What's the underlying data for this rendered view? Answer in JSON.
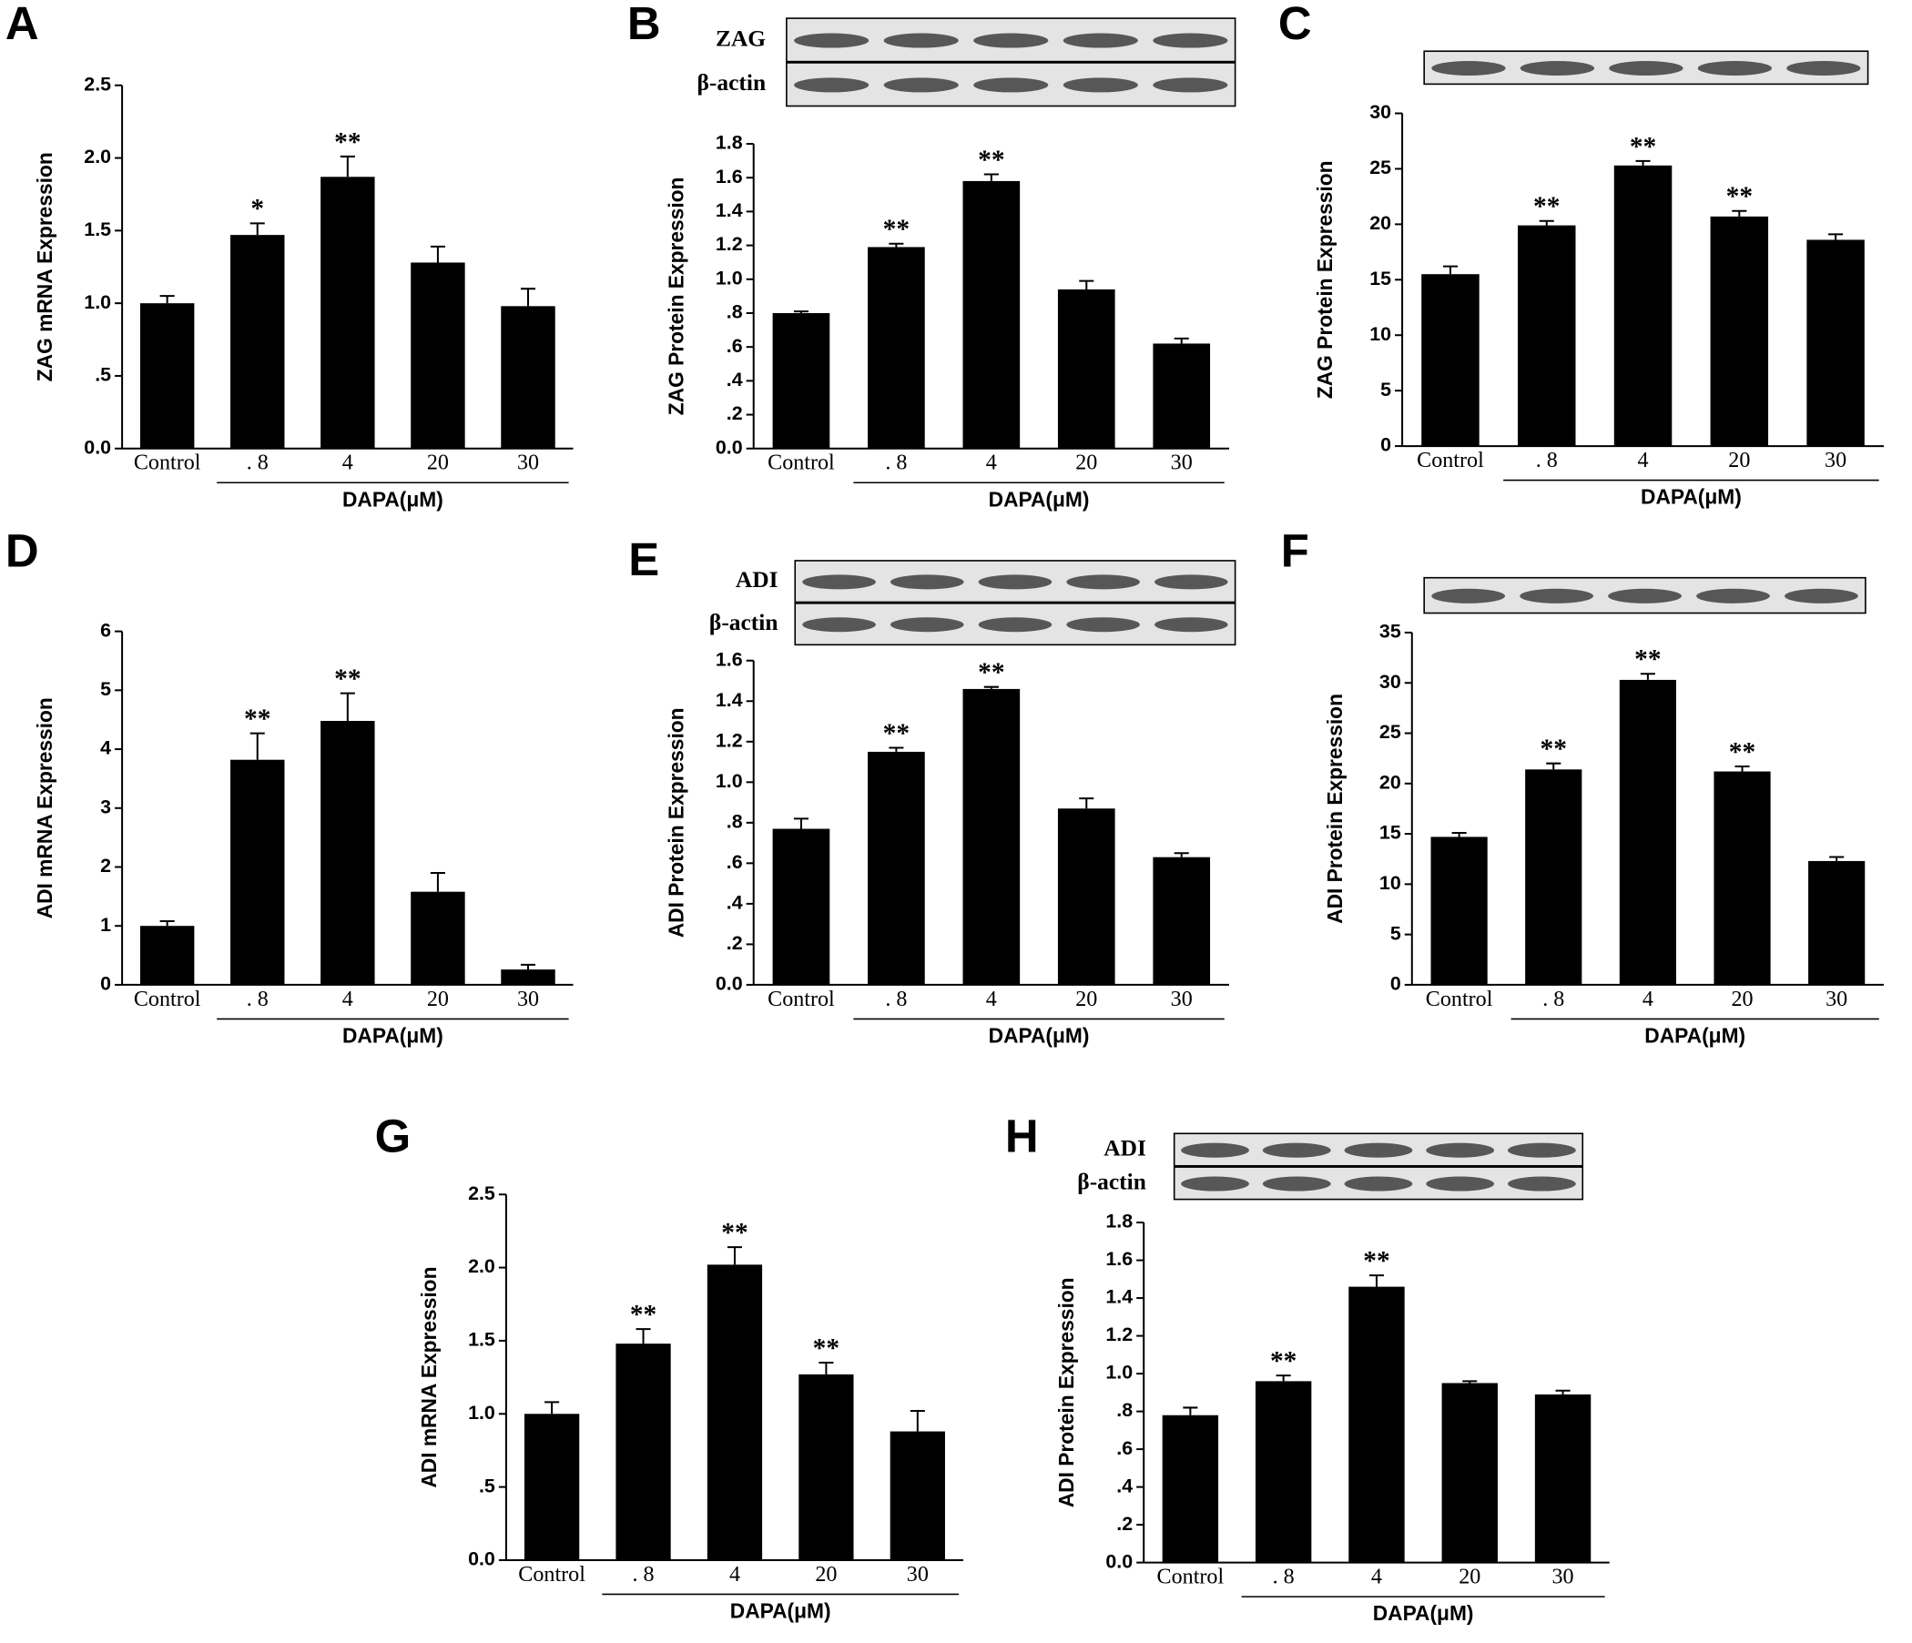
{
  "chart_data": [
    {
      "type": "bar",
      "panel": "A",
      "ylabel": "ZAG mRNA Expression",
      "xlabel": "DAPA(μM)",
      "categories": [
        "Control",
        ". 8",
        "4",
        "20",
        "30"
      ],
      "values": [
        1.0,
        1.47,
        1.87,
        1.28,
        0.98
      ],
      "errors": [
        0.05,
        0.08,
        0.14,
        0.11,
        0.12
      ],
      "annotations": [
        null,
        "*",
        "**",
        null,
        null
      ],
      "color": "#000000",
      "ylim": [
        0,
        2.5
      ],
      "yticks": [
        {
          "value": 0,
          "label": "0.0"
        },
        {
          "value": 0.5,
          "label": ".5"
        },
        {
          "value": 1,
          "label": "1.0"
        },
        1.5,
        {
          "value": 2,
          "label": "2.0"
        },
        2.5
      ]
    },
    {
      "type": "bar",
      "panel": "B",
      "ylabel": "ZAG Protein Expression",
      "xlabel": "DAPA(μM)",
      "blot_labels": [
        "ZAG",
        "β-actin"
      ],
      "categories": [
        "Control",
        ". 8",
        "4",
        "20",
        "30"
      ],
      "values": [
        0.8,
        1.19,
        1.58,
        0.94,
        0.62
      ],
      "errors": [
        0.01,
        0.02,
        0.04,
        0.05,
        0.03
      ],
      "annotations": [
        null,
        "**",
        "**",
        null,
        null
      ],
      "color": "#000000",
      "ylim": [
        0,
        1.8
      ],
      "yticks": [
        {
          "value": 0,
          "label": "0.0"
        },
        {
          "value": 0.2,
          "label": ".2"
        },
        {
          "value": 0.4,
          "label": ".4"
        },
        {
          "value": 0.6,
          "label": ".6"
        },
        {
          "value": 0.8,
          "label": ".8"
        },
        {
          "value": 1,
          "label": "1.0"
        },
        1.2,
        1.4,
        1.6,
        1.8
      ]
    },
    {
      "type": "bar",
      "panel": "C",
      "ylabel": "ZAG Protein Expression",
      "xlabel": "DAPA(μM)",
      "categories": [
        "Control",
        ". 8",
        "4",
        "20",
        "30"
      ],
      "values": [
        15.5,
        19.9,
        25.3,
        20.7,
        18.6
      ],
      "errors": [
        0.7,
        0.4,
        0.4,
        0.5,
        0.5
      ],
      "annotations": [
        null,
        "**",
        "**",
        "**",
        null
      ],
      "color": "#000000",
      "ylim": [
        0,
        30
      ],
      "yticks": [
        0,
        5,
        10,
        15,
        20,
        25,
        30
      ]
    },
    {
      "type": "bar",
      "panel": "D",
      "ylabel": "ADI mRNA Expression",
      "xlabel": "DAPA(μM)",
      "categories": [
        "Control",
        ". 8",
        "4",
        "20",
        "30"
      ],
      "values": [
        1.0,
        3.82,
        4.48,
        1.58,
        0.26
      ],
      "errors": [
        0.08,
        0.45,
        0.47,
        0.32,
        0.08
      ],
      "annotations": [
        null,
        "**",
        "**",
        null,
        null
      ],
      "color": "#000000",
      "ylim": [
        0,
        6
      ],
      "yticks": [
        0,
        1,
        2,
        3,
        4,
        5,
        6
      ]
    },
    {
      "type": "bar",
      "panel": "E",
      "ylabel": "ADI Protein Expression",
      "xlabel": "DAPA(μM)",
      "blot_labels": [
        "ADI",
        "β-actin"
      ],
      "categories": [
        "Control",
        ". 8",
        "4",
        "20",
        "30"
      ],
      "values": [
        0.77,
        1.15,
        1.46,
        0.87,
        0.63
      ],
      "errors": [
        0.05,
        0.02,
        0.01,
        0.05,
        0.02
      ],
      "annotations": [
        null,
        "**",
        "**",
        null,
        null
      ],
      "color": "#000000",
      "ylim": [
        0,
        1.6
      ],
      "yticks": [
        {
          "value": 0,
          "label": "0.0"
        },
        {
          "value": 0.2,
          "label": ".2"
        },
        {
          "value": 0.4,
          "label": ".4"
        },
        {
          "value": 0.6,
          "label": ".6"
        },
        {
          "value": 0.8,
          "label": ".8"
        },
        {
          "value": 1,
          "label": "1.0"
        },
        1.2,
        1.4,
        1.6
      ]
    },
    {
      "type": "bar",
      "panel": "F",
      "ylabel": "ADI Protein Expression",
      "xlabel": "DAPA(μM)",
      "categories": [
        "Control",
        ". 8",
        "4",
        "20",
        "30"
      ],
      "values": [
        14.7,
        21.4,
        30.3,
        21.2,
        12.3
      ],
      "errors": [
        0.4,
        0.6,
        0.6,
        0.5,
        0.4
      ],
      "annotations": [
        null,
        "**",
        "**",
        "**",
        null
      ],
      "color": "#000000",
      "ylim": [
        0,
        35
      ],
      "yticks": [
        0,
        5,
        10,
        15,
        20,
        25,
        30,
        35
      ]
    },
    {
      "type": "bar",
      "panel": "G",
      "ylabel": "ADI mRNA Expression",
      "xlabel": "DAPA(μM)",
      "categories": [
        "Control",
        ". 8",
        "4",
        "20",
        "30"
      ],
      "values": [
        1.0,
        1.48,
        2.02,
        1.27,
        0.88
      ],
      "errors": [
        0.08,
        0.1,
        0.12,
        0.08,
        0.14
      ],
      "annotations": [
        null,
        "**",
        "**",
        "**",
        null
      ],
      "color": "#000000",
      "ylim": [
        0,
        2.5
      ],
      "yticks": [
        {
          "value": 0,
          "label": "0.0"
        },
        {
          "value": 0.5,
          "label": ".5"
        },
        {
          "value": 1,
          "label": "1.0"
        },
        1.5,
        {
          "value": 2,
          "label": "2.0"
        },
        2.5
      ]
    },
    {
      "type": "bar",
      "panel": "H",
      "ylabel": "ADI Protein Expression",
      "xlabel": "DAPA(μM)",
      "blot_labels": [
        "ADI",
        "β-actin"
      ],
      "categories": [
        "Control",
        ". 8",
        "4",
        "20",
        "30"
      ],
      "values": [
        0.78,
        0.96,
        1.46,
        0.95,
        0.89
      ],
      "errors": [
        0.04,
        0.03,
        0.06,
        0.01,
        0.02
      ],
      "annotations": [
        null,
        "**",
        "**",
        null,
        null
      ],
      "color": "#000000",
      "ylim": [
        0,
        1.8
      ],
      "yticks": [
        {
          "value": 0,
          "label": "0.0"
        },
        {
          "value": 0.2,
          "label": ".2"
        },
        {
          "value": 0.4,
          "label": ".4"
        },
        {
          "value": 0.6,
          "label": ".6"
        },
        {
          "value": 0.8,
          "label": ".8"
        },
        {
          "value": 1,
          "label": "1.0"
        },
        1.2,
        1.4,
        1.6,
        1.8
      ]
    }
  ]
}
